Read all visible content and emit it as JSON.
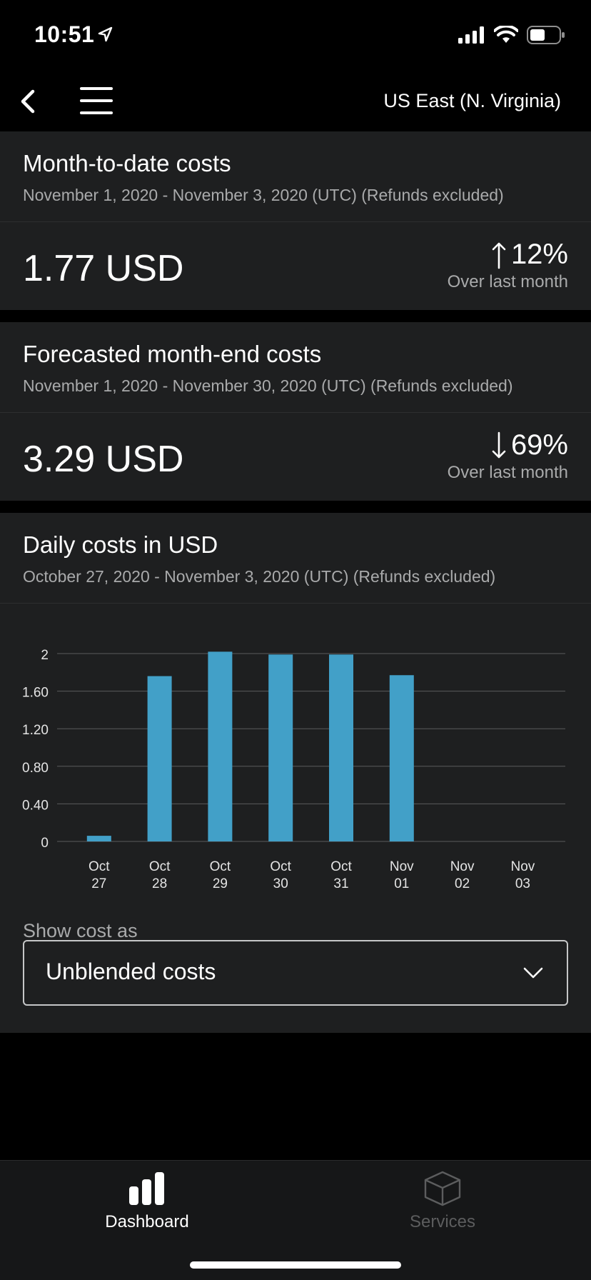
{
  "status": {
    "time": "10:51"
  },
  "nav": {
    "region": "US East (N. Virginia)"
  },
  "mtd": {
    "title": "Month-to-date costs",
    "subtitle": "November 1, 2020 - November 3, 2020 (UTC) (Refunds excluded)",
    "amount": "1.77 USD",
    "change": "12%",
    "change_direction": "up",
    "change_label": "Over last month"
  },
  "forecast": {
    "title": "Forecasted month-end costs",
    "subtitle": "November 1, 2020 - November 30, 2020 (UTC) (Refunds excluded)",
    "amount": "3.29 USD",
    "change": "69%",
    "change_direction": "down",
    "change_label": "Over last month"
  },
  "daily": {
    "title": "Daily costs in USD",
    "subtitle": "October 27, 2020 - November 3, 2020 (UTC) (Refunds excluded)",
    "show_label": "Show cost as",
    "dropdown_value": "Unblended costs"
  },
  "chart_data": {
    "type": "bar",
    "categories": [
      [
        "Oct",
        "27"
      ],
      [
        "Oct",
        "28"
      ],
      [
        "Oct",
        "29"
      ],
      [
        "Oct",
        "30"
      ],
      [
        "Oct",
        "31"
      ],
      [
        "Nov",
        "01"
      ],
      [
        "Nov",
        "02"
      ],
      [
        "Nov",
        "03"
      ]
    ],
    "values": [
      0.06,
      1.76,
      2.02,
      1.99,
      1.99,
      1.77,
      0,
      0
    ],
    "yticks": [
      "0",
      "0.40",
      "0.80",
      "1.20",
      "1.60",
      "2"
    ],
    "ytick_values": [
      0,
      0.4,
      0.8,
      1.2,
      1.6,
      2
    ],
    "ylim": [
      0,
      2
    ],
    "grid": true,
    "bar_color": "#42a0c8"
  },
  "tabs": [
    {
      "label": "Dashboard",
      "active": true,
      "icon": "bar-chart-icon"
    },
    {
      "label": "Services",
      "active": false,
      "icon": "cube-icon"
    }
  ],
  "colors": {
    "card": "#1e1f20",
    "accent": "#42a0c8",
    "muted": "#a9aaab"
  }
}
